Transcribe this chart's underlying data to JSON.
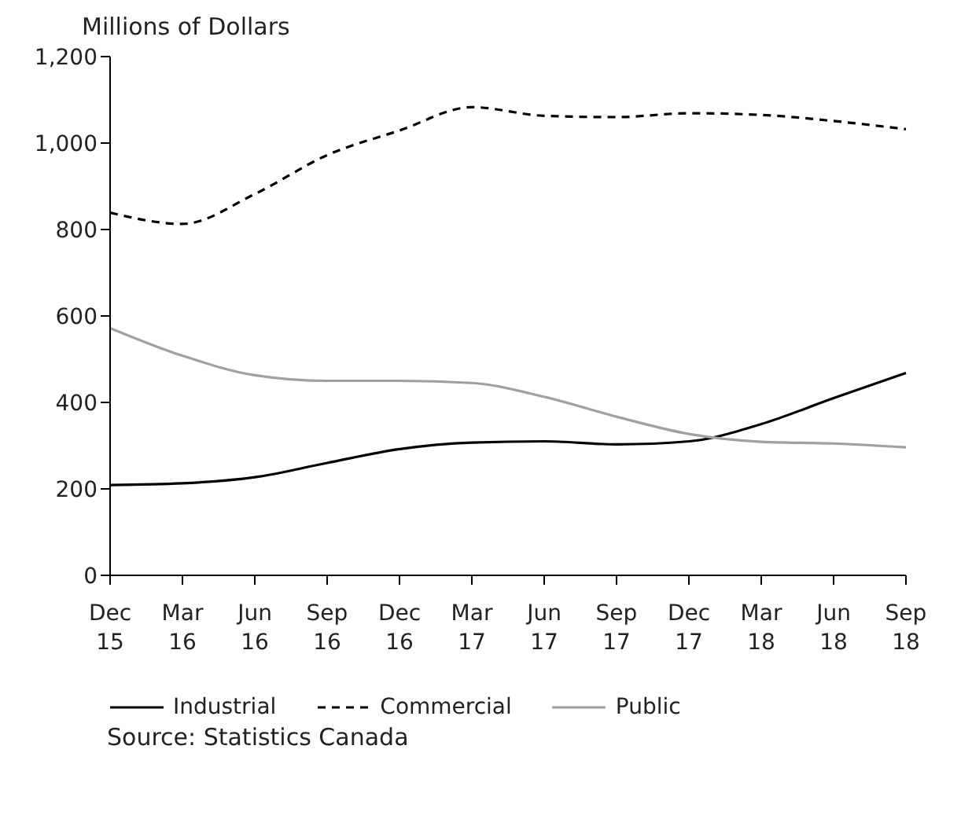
{
  "chart_data": {
    "type": "line",
    "ylabel": "Millions of Dollars",
    "categories": [
      "Dec 15",
      "Mar 16",
      "Jun 16",
      "Sep 16",
      "Dec 16",
      "Mar 17",
      "Jun 17",
      "Sep 17",
      "Dec 17",
      "Mar 18",
      "Jun 18",
      "Sep 18"
    ],
    "series": [
      {
        "name": "Industrial",
        "color": "#000000",
        "line_style": "solid",
        "values": [
          209,
          213,
          227,
          260,
          292,
          307,
          310,
          303,
          310,
          350,
          410,
          468
        ]
      },
      {
        "name": "Commercial",
        "color": "#000000",
        "line_style": "dashed",
        "values": [
          839,
          813,
          882,
          972,
          1029,
          1083,
          1063,
          1060,
          1069,
          1065,
          1051,
          1032
        ]
      },
      {
        "name": "Public",
        "color": "#a0a0a0",
        "line_style": "solid",
        "values": [
          572,
          508,
          463,
          450,
          450,
          445,
          413,
          367,
          327,
          309,
          305,
          296
        ]
      }
    ],
    "ylim": [
      0,
      1200
    ],
    "yticks": [
      0,
      200,
      400,
      600,
      800,
      {
        "value": 1000,
        "label": "1,000"
      },
      {
        "value": 1200,
        "label": "1,200"
      }
    ],
    "grid": false,
    "legend": "bottom",
    "marker": "none",
    "annotations": [
      "Source: Statistics Canada"
    ]
  }
}
